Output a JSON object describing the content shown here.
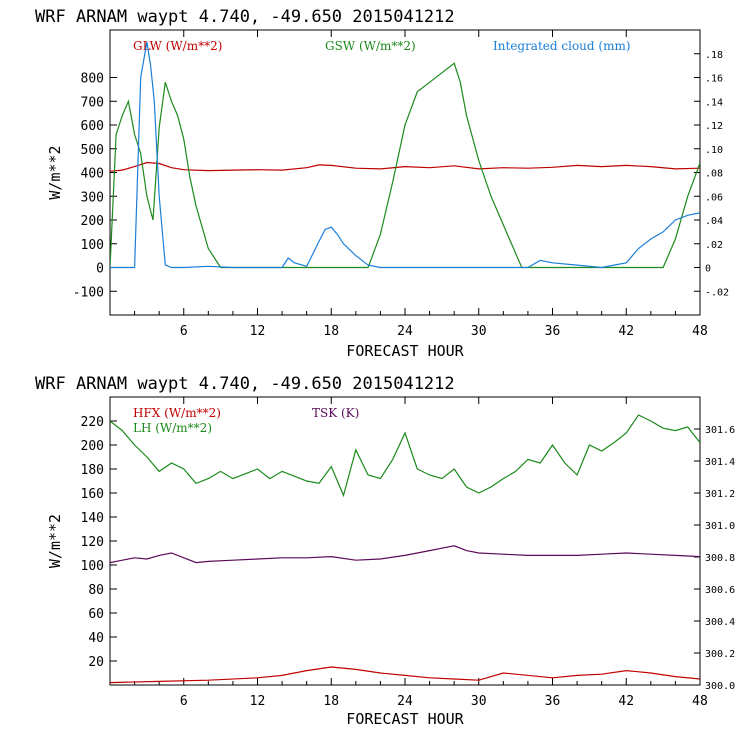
{
  "chart_data": [
    {
      "type": "line",
      "title": "WRF   ARNAM waypt    4.740, -49.650  2015041212",
      "xlabel": "FORECAST HOUR",
      "ylabel": "W/m**2",
      "xlim": [
        0,
        48
      ],
      "ylim": [
        -200,
        1000
      ],
      "x_ticks": [
        6,
        12,
        18,
        24,
        30,
        36,
        42,
        48
      ],
      "y_ticks": [
        -100,
        0,
        100,
        200,
        300,
        400,
        500,
        600,
        700,
        800
      ],
      "y2lim": [
        -0.04,
        0.2
      ],
      "y2_ticks": [
        -0.02,
        0,
        0.02,
        0.04,
        0.06,
        0.08,
        0.1,
        0.12,
        0.14,
        0.16,
        0.18
      ],
      "y2_tick_labels": [
        "-.02",
        "0",
        ".02",
        ".04",
        ".06",
        ".08",
        ".10",
        ".12",
        ".14",
        ".16",
        ".18"
      ],
      "legend_placement": "top",
      "series": [
        {
          "name": "GLW (W/m**2)",
          "color": "#c00000",
          "axis": "left",
          "x": [
            0,
            1,
            2,
            3,
            4,
            5,
            6,
            8,
            10,
            12,
            14,
            16,
            17,
            18,
            20,
            22,
            24,
            26,
            28,
            30,
            32,
            34,
            36,
            38,
            40,
            42,
            44,
            46,
            48
          ],
          "y": [
            405,
            410,
            425,
            442,
            438,
            420,
            412,
            408,
            410,
            412,
            410,
            420,
            432,
            430,
            418,
            415,
            425,
            420,
            428,
            415,
            420,
            418,
            422,
            430,
            425,
            430,
            425,
            415,
            418
          ]
        },
        {
          "name": "GSW (W/m**2)",
          "color": "#1c8a1c",
          "axis": "left",
          "x": [
            0,
            0.5,
            1,
            1.5,
            2,
            2.5,
            3,
            3.5,
            4,
            4.5,
            5,
            5.5,
            6,
            6.5,
            7,
            8,
            9,
            9.5,
            10,
            20,
            21,
            22,
            23,
            24,
            25,
            26,
            27,
            28,
            28.5,
            29,
            30,
            31,
            32,
            33,
            33.5,
            34,
            45,
            46,
            47,
            48
          ],
          "y": [
            0,
            560,
            640,
            700,
            560,
            480,
            300,
            200,
            590,
            780,
            700,
            640,
            540,
            380,
            260,
            80,
            0,
            0,
            0,
            0,
            0,
            140,
            360,
            600,
            740,
            780,
            820,
            860,
            780,
            640,
            450,
            300,
            180,
            60,
            0,
            0,
            0,
            120,
            300,
            440
          ]
        },
        {
          "name": "Integrated cloud (mm)",
          "color": "#1a7fd6",
          "axis": "right",
          "x": [
            0,
            1,
            2,
            2.5,
            3,
            3.3,
            3.6,
            4,
            4.5,
            5,
            6,
            8,
            10,
            14,
            14.5,
            15,
            16,
            17,
            17.5,
            18,
            18.5,
            19,
            20,
            21,
            22,
            34,
            35,
            36,
            38,
            40,
            41,
            42,
            43,
            44,
            45,
            46,
            47,
            48
          ],
          "y": [
            0,
            0,
            0,
            0.16,
            0.19,
            0.17,
            0.14,
            0.06,
            0.002,
            0,
            0,
            0.001,
            0,
            0,
            0.008,
            0.004,
            0.001,
            0.022,
            0.032,
            0.034,
            0.028,
            0.02,
            0.01,
            0.002,
            0,
            0,
            0.006,
            0.004,
            0.002,
            0,
            0.002,
            0.004,
            0.016,
            0.024,
            0.03,
            0.04,
            0.044,
            0.046
          ]
        }
      ]
    },
    {
      "type": "line",
      "title": "WRF   ARNAM waypt    4.740, -49.650  2015041212",
      "xlabel": "FORECAST HOUR",
      "ylabel": "W/m**2",
      "xlim": [
        0,
        48
      ],
      "ylim": [
        0,
        240
      ],
      "x_ticks": [
        6,
        12,
        18,
        24,
        30,
        36,
        42,
        48
      ],
      "y_ticks": [
        20,
        40,
        60,
        80,
        100,
        120,
        140,
        160,
        180,
        200,
        220
      ],
      "y2lim": [
        300.0,
        301.8
      ],
      "y2_ticks": [
        300.0,
        300.2,
        300.4,
        300.6,
        300.8,
        301.0,
        301.2,
        301.4,
        301.6
      ],
      "y2_tick_labels": [
        "300.0",
        "300.2",
        "300.4",
        "300.6",
        "300.8",
        "301.0",
        "301.2",
        "301.4",
        "301.6"
      ],
      "legend_placement": "top-left",
      "series": [
        {
          "name": "HFX (W/m**2)",
          "color": "#c00000",
          "axis": "left",
          "x": [
            0,
            4,
            8,
            12,
            14,
            16,
            18,
            20,
            22,
            24,
            26,
            28,
            30,
            32,
            36,
            38,
            40,
            42,
            44,
            46,
            48
          ],
          "y": [
            2,
            3,
            4,
            6,
            8,
            12,
            15,
            13,
            10,
            8,
            6,
            5,
            4,
            10,
            6,
            8,
            9,
            12,
            10,
            7,
            5
          ]
        },
        {
          "name": "LH  (W/m**2)",
          "color": "#1c8a1c",
          "axis": "left",
          "x": [
            0,
            1,
            2,
            3,
            4,
            5,
            6,
            7,
            8,
            9,
            10,
            11,
            12,
            13,
            14,
            15,
            16,
            17,
            18,
            19,
            20,
            21,
            22,
            23,
            24,
            25,
            26,
            27,
            28,
            29,
            30,
            31,
            32,
            33,
            34,
            35,
            36,
            37,
            38,
            39,
            40,
            41,
            42,
            43,
            44,
            45,
            46,
            47,
            48
          ],
          "y": [
            220,
            212,
            200,
            190,
            178,
            185,
            180,
            168,
            172,
            178,
            172,
            176,
            180,
            172,
            178,
            174,
            170,
            168,
            182,
            158,
            196,
            175,
            172,
            188,
            210,
            180,
            175,
            172,
            180,
            165,
            160,
            165,
            172,
            178,
            188,
            185,
            200,
            185,
            175,
            200,
            195,
            202,
            210,
            225,
            220,
            214,
            212,
            215,
            202
          ]
        },
        {
          "name": "TSK (K)",
          "color": "#5a0a5a",
          "axis": "left",
          "x": [
            0,
            1,
            2,
            3,
            4,
            5,
            6,
            7,
            8,
            10,
            12,
            14,
            16,
            18,
            20,
            22,
            24,
            26,
            27,
            28,
            29,
            30,
            32,
            34,
            36,
            38,
            40,
            42,
            44,
            46,
            48
          ],
          "y": [
            102,
            104,
            106,
            105,
            108,
            110,
            106,
            102,
            103,
            104,
            105,
            106,
            106,
            107,
            104,
            105,
            108,
            112,
            114,
            116,
            112,
            110,
            109,
            108,
            108,
            108,
            109,
            110,
            109,
            108,
            107
          ]
        }
      ]
    }
  ]
}
